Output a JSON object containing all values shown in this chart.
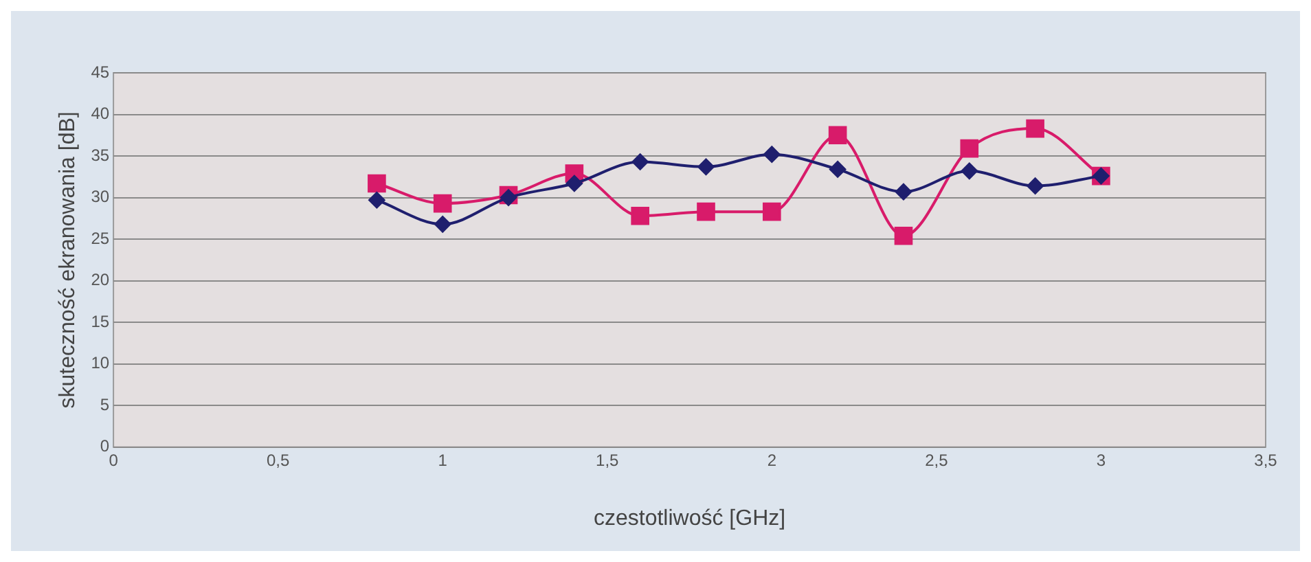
{
  "chart_data": {
    "type": "line",
    "xlabel": "czestotliwość [GHz]",
    "ylabel": "skuteczność ekranowania [dB]",
    "xlim": [
      0,
      3.5
    ],
    "xticks": [
      0,
      {
        "value": 0.5,
        "label": "0,5"
      },
      1,
      {
        "value": 1.5,
        "label": "1,5"
      },
      2,
      {
        "value": 2.5,
        "label": "2,5"
      },
      3,
      {
        "value": 3.5,
        "label": "3,5"
      }
    ],
    "ylim": [
      0,
      45
    ],
    "yticks": [
      0,
      5,
      10,
      15,
      20,
      25,
      30,
      35,
      40,
      45
    ],
    "grid": "y",
    "legend": false,
    "x": [
      0.8,
      1,
      1.2,
      1.4,
      1.6,
      1.8,
      2,
      2.2,
      2.4,
      2.6,
      2.8,
      3
    ],
    "series": [
      {
        "color": "#1f1f6e",
        "marker": "diamond",
        "values": [
          29.7,
          26.8,
          30,
          31.7,
          34.3,
          33.7,
          35.2,
          33.4,
          30.7,
          33.2,
          31.4,
          32.6
        ]
      },
      {
        "color": "#d81b6a",
        "marker": "square",
        "values": [
          31.7,
          29.3,
          30.3,
          32.9,
          27.8,
          28.3,
          28.3,
          37.5,
          25.4,
          35.9,
          38.3,
          32.6
        ]
      }
    ]
  }
}
